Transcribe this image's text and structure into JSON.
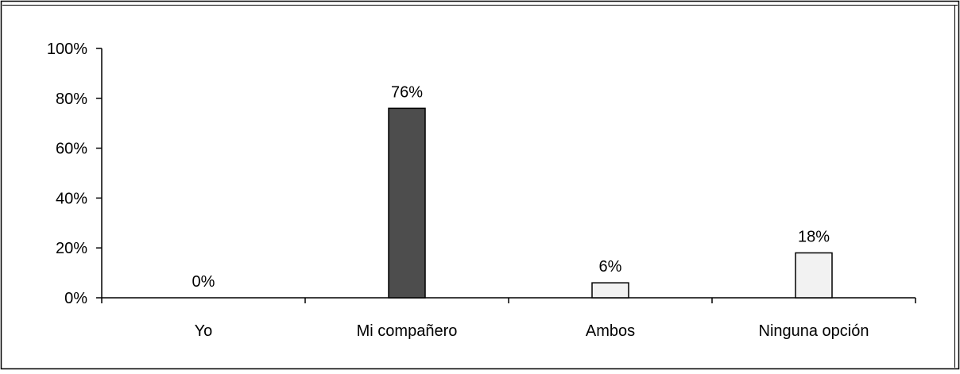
{
  "chart_data": {
    "type": "bar",
    "title": "",
    "xlabel": "",
    "ylabel": "",
    "categories": [
      "Yo",
      "Mi compañero",
      "Ambos",
      "Ninguna opción"
    ],
    "values": [
      0,
      76,
      6,
      18
    ],
    "data_labels": [
      "0%",
      "76%",
      "6%",
      "18%"
    ],
    "ylim": [
      0,
      100
    ],
    "yticks": [
      0,
      20,
      40,
      60,
      80,
      100
    ],
    "ytick_labels": [
      "0%",
      "20%",
      "40%",
      "60%",
      "80%",
      "100%"
    ],
    "bar_colors": [
      "#4d4d4d",
      "#4d4d4d",
      "#f2f2f2",
      "#f2f2f2"
    ],
    "bar_stroke": "#000000",
    "grid": false,
    "legend": "none"
  }
}
